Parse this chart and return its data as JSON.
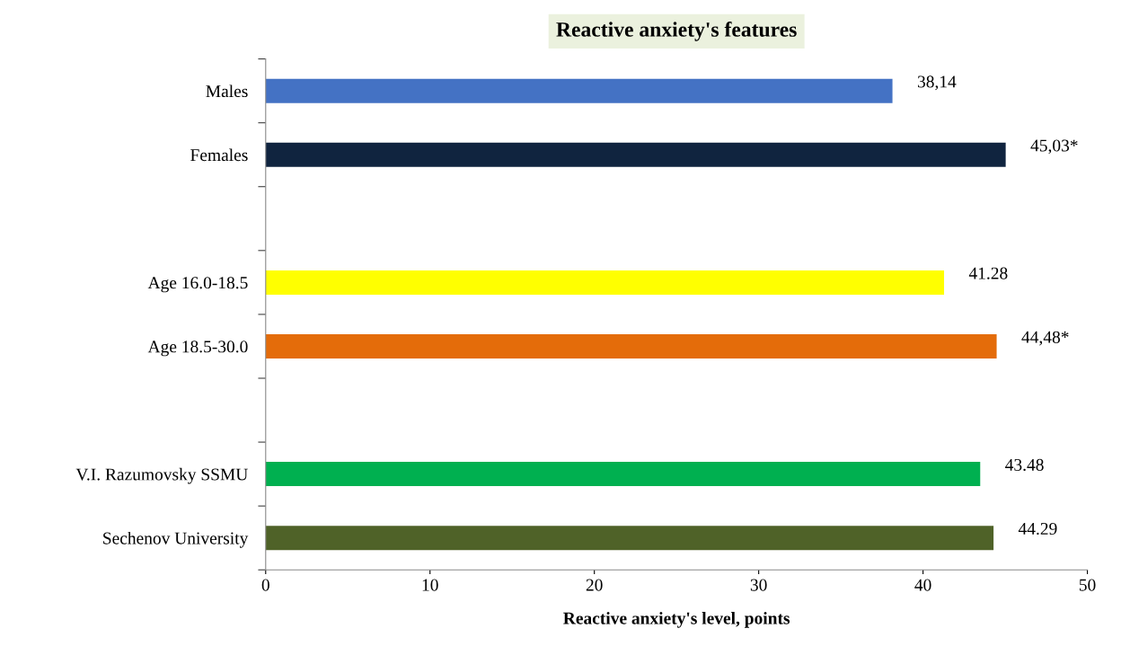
{
  "chart_data": {
    "type": "bar",
    "orientation": "horizontal",
    "title": "Reactive anxiety's features",
    "xlabel": "Reactive anxiety's level, points",
    "categories": [
      "Males",
      "Females",
      null,
      "Age 16.0-18.5",
      "Age 18.5-30.0",
      null,
      "V.I. Razumovsky SSMU",
      "Sechenov University"
    ],
    "values": [
      38.14,
      45.03,
      null,
      41.28,
      44.48,
      null,
      43.48,
      44.29
    ],
    "colors": [
      "#4472c4",
      "#10243f",
      "#c0c0c0",
      "#ffff00",
      "#e46c0a",
      "#c0c0c0",
      "#00b050",
      "#4f6228"
    ],
    "value_labels": [
      "38,14",
      "45,03*",
      null,
      "41.28",
      "44,48*",
      null,
      "43.48",
      "44.29"
    ],
    "xlim": [
      0,
      50
    ],
    "xticks": [
      0,
      10,
      20,
      30,
      40,
      50
    ],
    "grid": false,
    "legend": false
  }
}
